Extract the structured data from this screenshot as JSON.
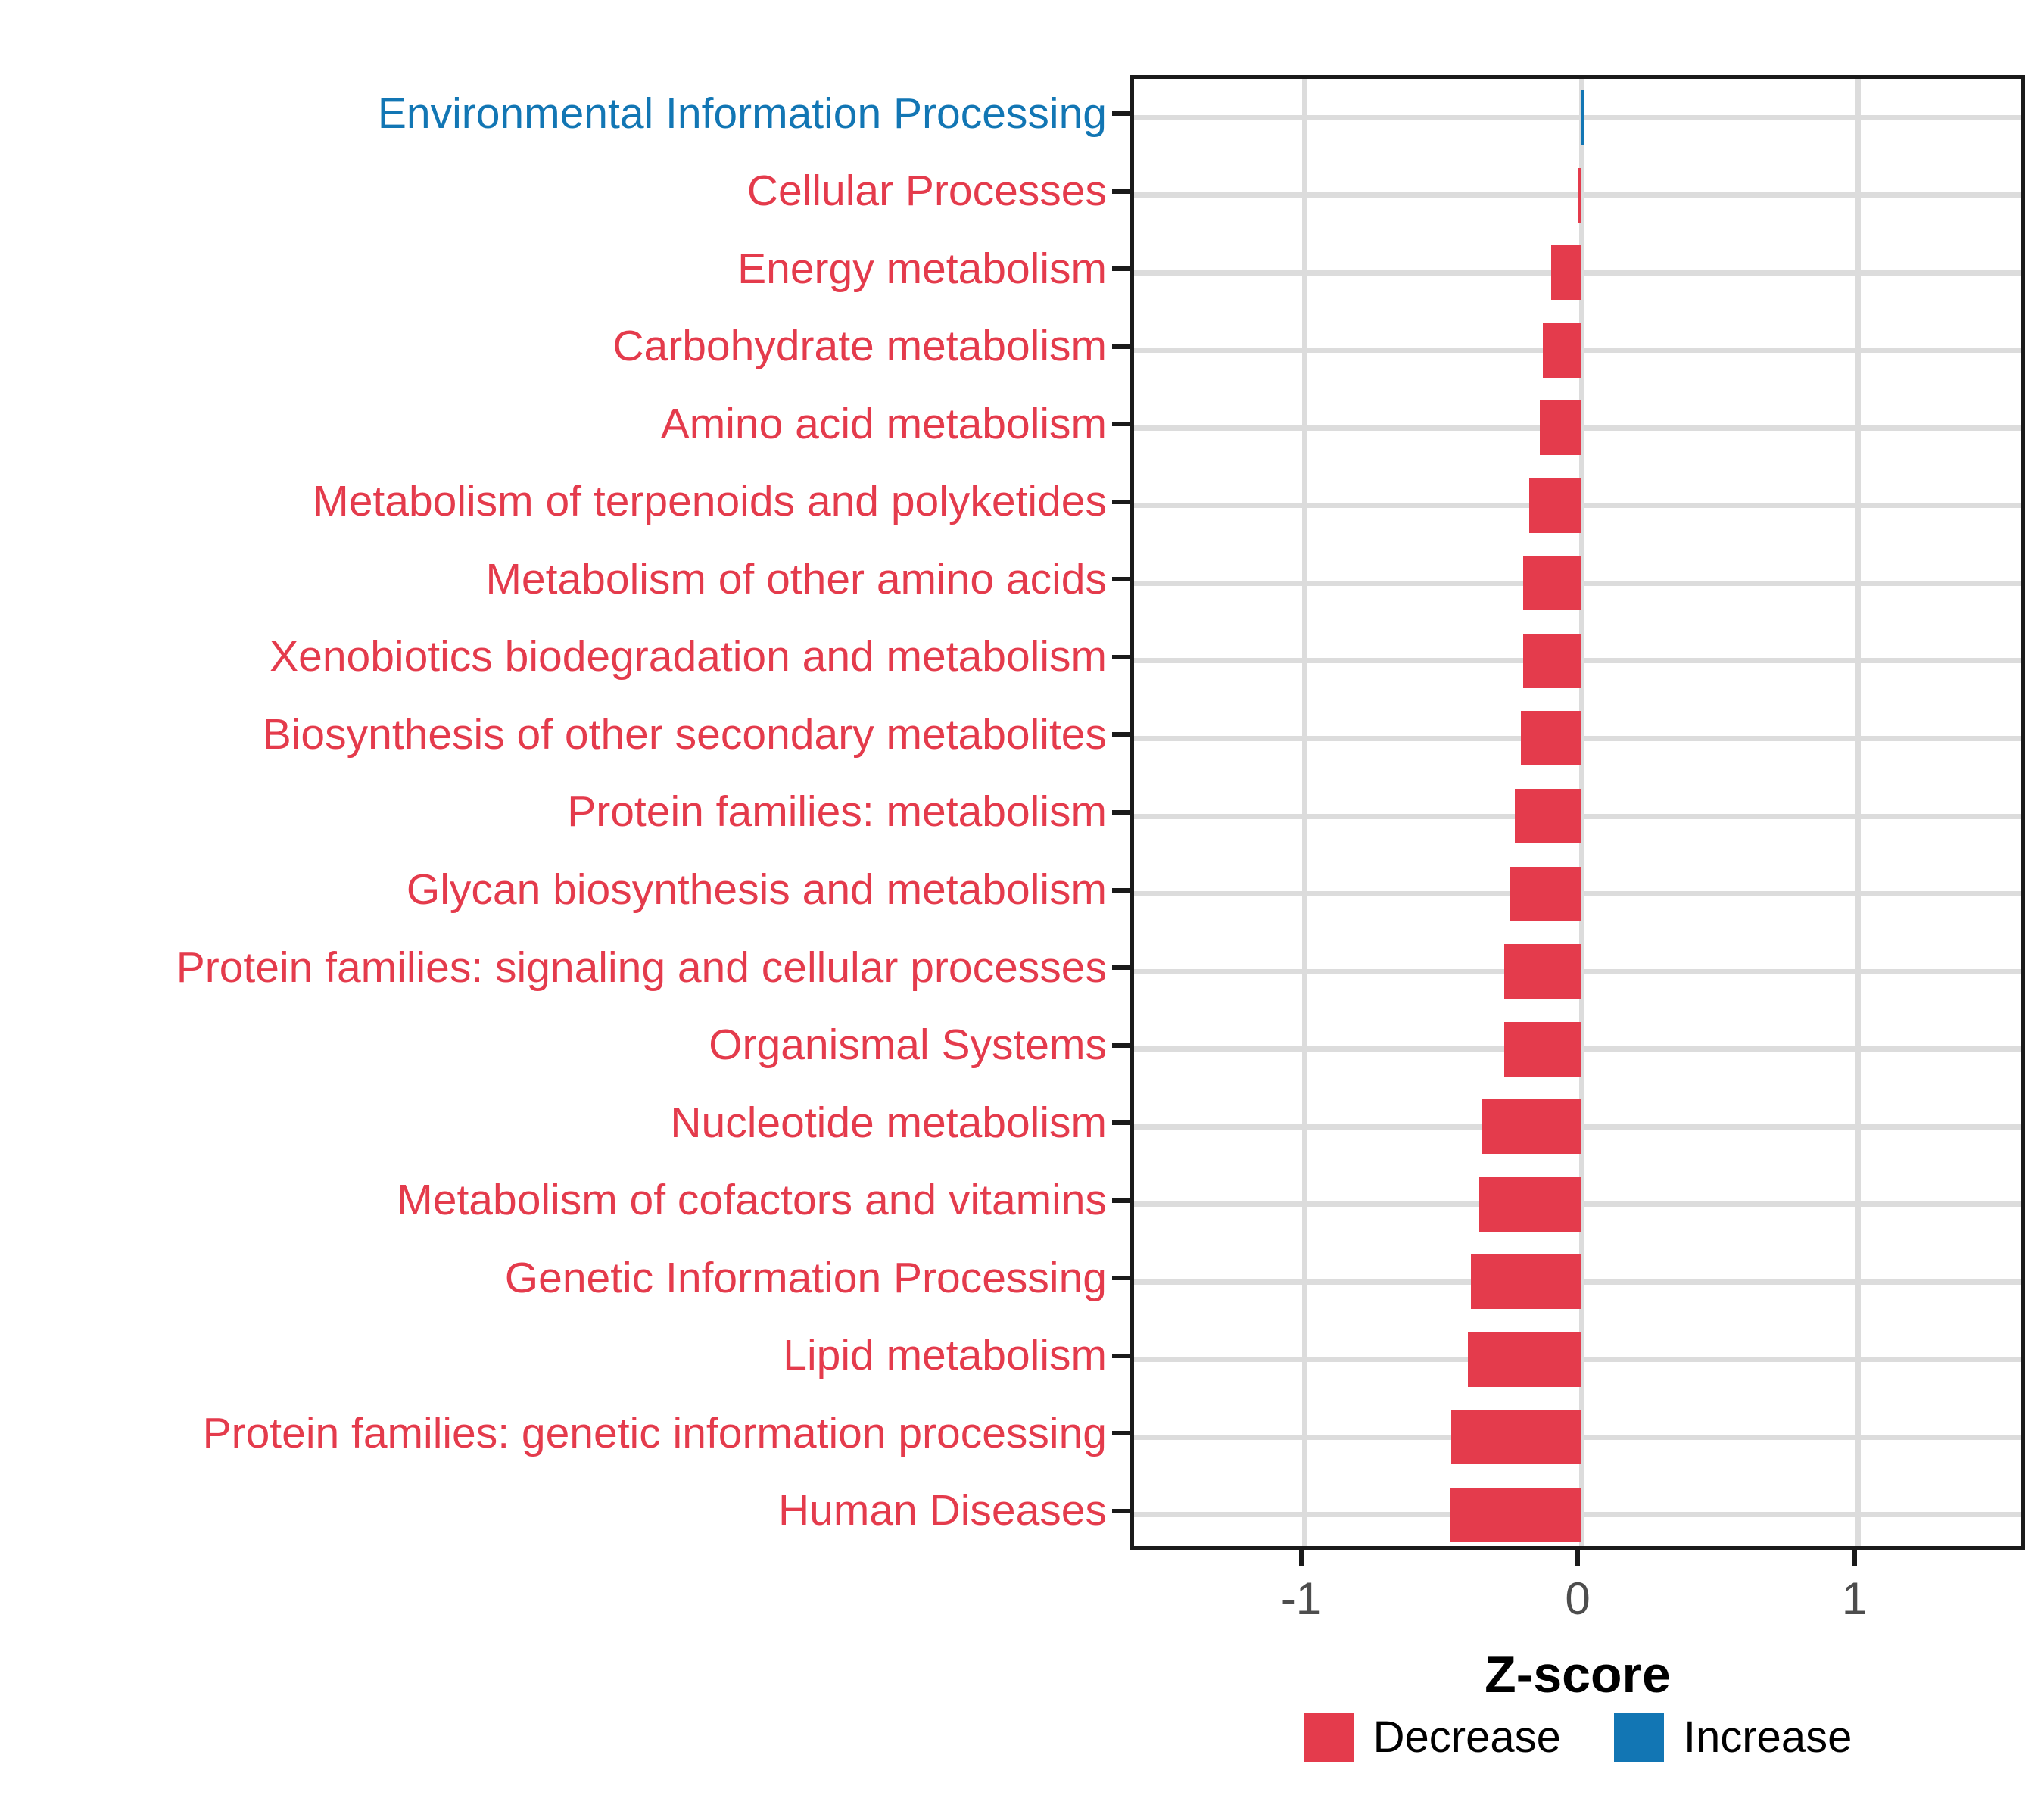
{
  "chart_data": {
    "type": "bar",
    "orientation": "horizontal",
    "xlabel": "Z-score",
    "x_ticks": [
      -1,
      0,
      1
    ],
    "xlim": [
      -1.62,
      1.62
    ],
    "grid": "major",
    "legend_position": "bottom",
    "categories": [
      "Environmental Information Processing",
      "Cellular Processes",
      "Energy metabolism",
      "Carbohydrate metabolism",
      "Amino acid metabolism",
      "Metabolism of terpenoids and polyketides",
      "Metabolism of other amino acids",
      "Xenobiotics biodegradation and metabolism",
      "Biosynthesis of other secondary metabolites",
      "Protein families: metabolism",
      "Glycan biosynthesis and metabolism",
      "Protein families: signaling and cellular processes",
      "Organismal Systems",
      "Nucleotide metabolism",
      "Metabolism of cofactors and vitamins",
      "Genetic Information Processing",
      "Lipid metabolism",
      "Protein families: genetic information processing",
      "Human Diseases"
    ],
    "values": [
      0.01,
      -0.01,
      -0.11,
      -0.14,
      -0.15,
      -0.19,
      -0.21,
      -0.21,
      -0.22,
      -0.24,
      -0.26,
      -0.28,
      -0.28,
      -0.36,
      -0.37,
      -0.4,
      -0.41,
      -0.47,
      -0.475
    ],
    "directions": [
      "Increase",
      "Decrease",
      "Decrease",
      "Decrease",
      "Decrease",
      "Decrease",
      "Decrease",
      "Decrease",
      "Decrease",
      "Decrease",
      "Decrease",
      "Decrease",
      "Decrease",
      "Decrease",
      "Decrease",
      "Decrease",
      "Decrease",
      "Decrease",
      "Decrease"
    ],
    "colors": {
      "decrease": "#e43b4c",
      "increase": "#1276b4"
    },
    "legend": [
      {
        "label": "Decrease",
        "key": "decrease"
      },
      {
        "label": "Increase",
        "key": "increase"
      }
    ]
  }
}
